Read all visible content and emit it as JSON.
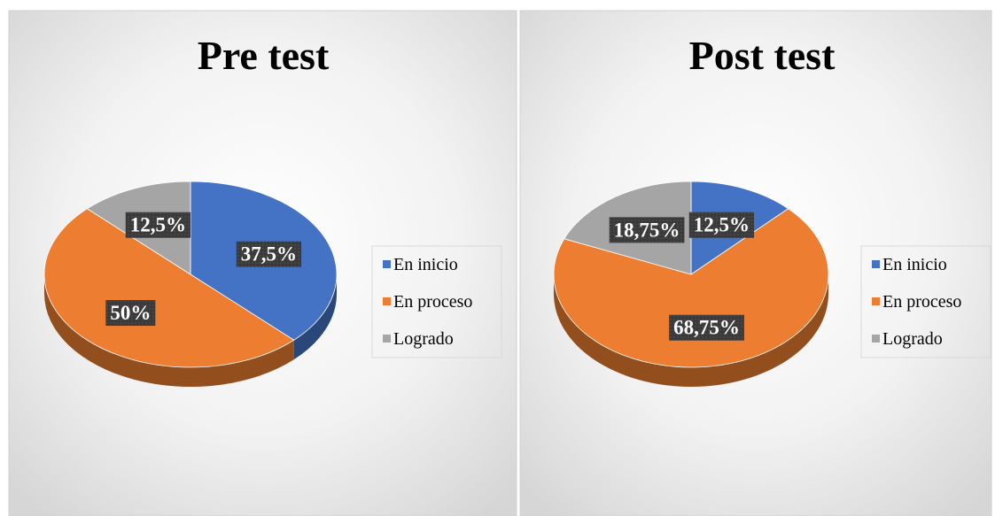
{
  "chart_data": [
    {
      "type": "pie",
      "title": "Pre test",
      "categories": [
        "En inicio",
        "En proceso",
        "Logrado"
      ],
      "values": [
        37.5,
        50,
        12.5
      ],
      "value_labels": [
        "37,5%",
        "50%",
        "12,5%"
      ],
      "colors": [
        "#4472c4",
        "#ed7d31",
        "#a5a5a5"
      ],
      "legend": "right"
    },
    {
      "type": "pie",
      "title": "Post test",
      "categories": [
        "En inicio",
        "En proceso",
        "Logrado"
      ],
      "values": [
        12.5,
        68.75,
        18.75
      ],
      "value_labels": [
        "12,5%",
        "68,75%",
        "18,75%"
      ],
      "colors": [
        "#4472c4",
        "#ed7d31",
        "#a5a5a5"
      ],
      "legend": "right"
    }
  ]
}
